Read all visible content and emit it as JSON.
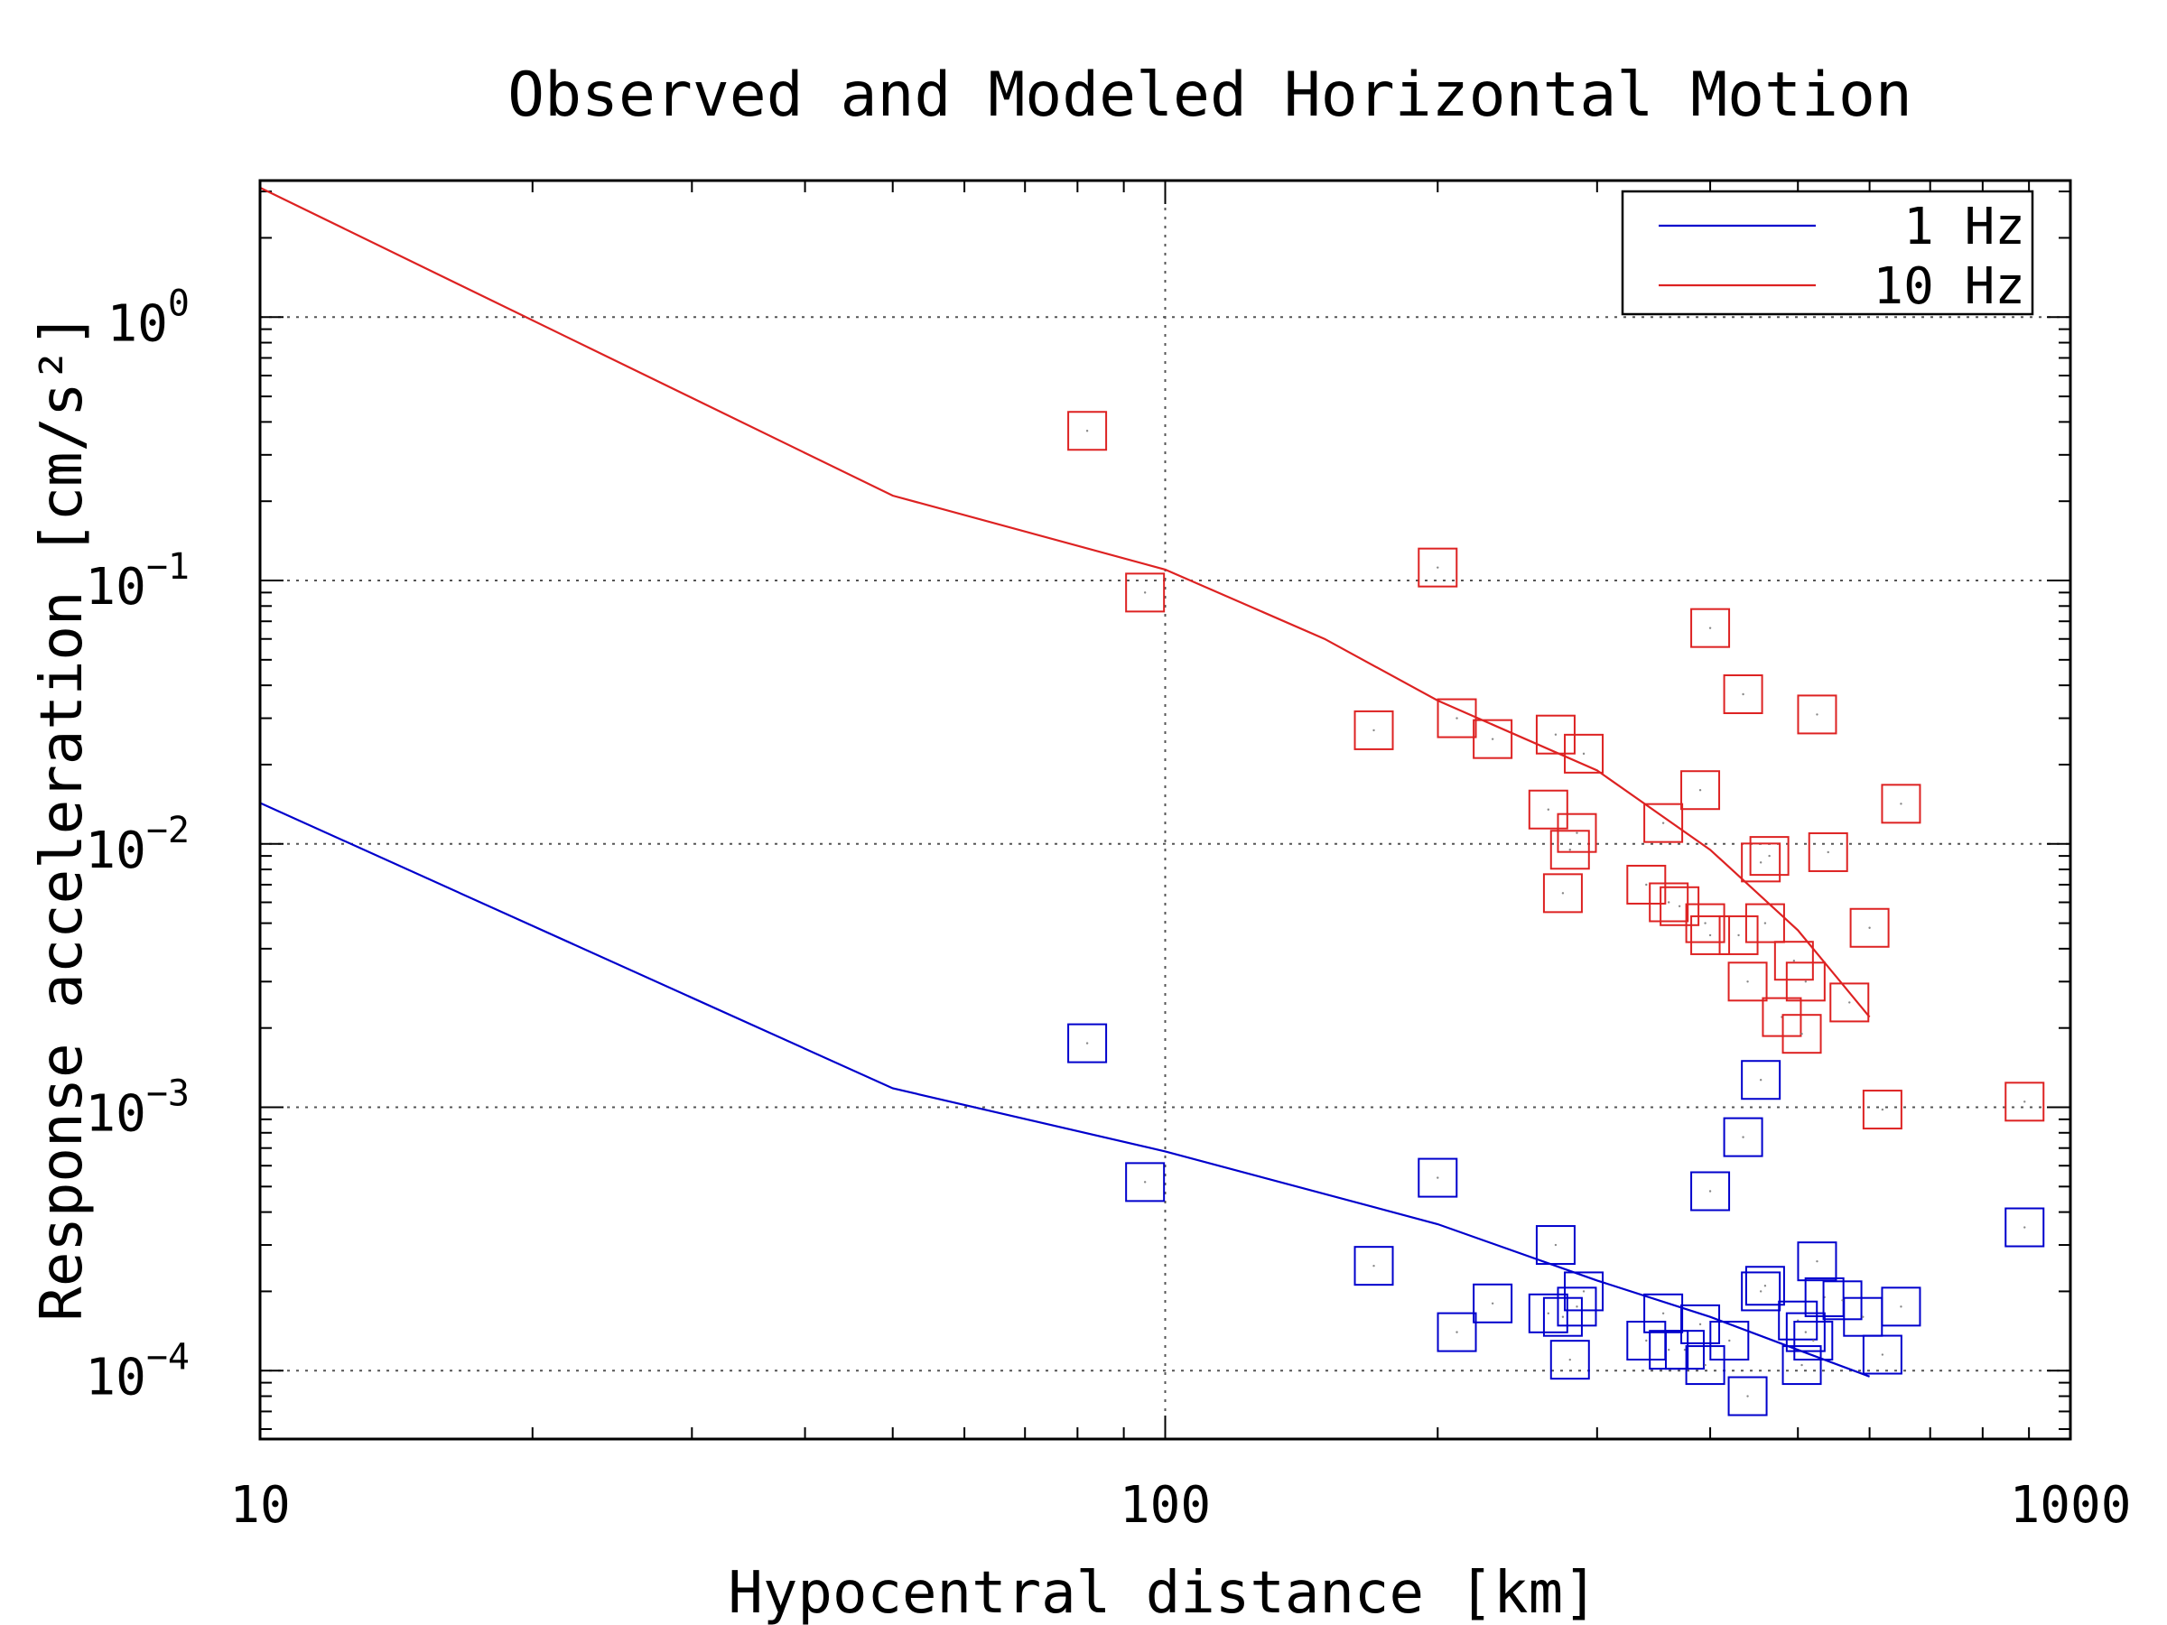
{
  "chart_data": {
    "type": "scatter",
    "title": "Observed and Modeled Horizontal Motion",
    "xlabel": "Hypocentral distance [km]",
    "ylabel": "Response acceleration [cm/s²]",
    "xscale": "log",
    "yscale": "log",
    "xlim": [
      10,
      1000
    ],
    "ylim": [
      5.5e-05,
      3.3
    ],
    "x_ticks": [
      {
        "value": 10,
        "label": "10"
      },
      {
        "value": 100,
        "label": "100"
      },
      {
        "value": 1000,
        "label": "1000"
      }
    ],
    "y_ticks": [
      {
        "value": 1,
        "base": "10",
        "exp": "0"
      },
      {
        "value": 0.1,
        "base": "10",
        "exp": "−1"
      },
      {
        "value": 0.01,
        "base": "10",
        "exp": "−2"
      },
      {
        "value": 0.001,
        "base": "10",
        "exp": "−3"
      },
      {
        "value": 0.0001,
        "base": "10",
        "exp": "−4"
      }
    ],
    "grid": true,
    "legend_position": "top-right",
    "series": [
      {
        "name": "1 Hz",
        "color": "#0000cc",
        "line": [
          [
            10,
            0.0143
          ],
          [
            50,
            0.00118
          ],
          [
            100,
            0.00068
          ],
          [
            200,
            0.00036
          ],
          [
            300,
            0.00022
          ],
          [
            400,
            0.00016
          ],
          [
            500,
            0.00012
          ],
          [
            600,
            9.5e-05
          ]
        ],
        "points": [
          [
            82,
            0.00175
          ],
          [
            95,
            0.00052
          ],
          [
            170,
            0.00025
          ],
          [
            200,
            0.00054
          ],
          [
            210,
            0.00014
          ],
          [
            230,
            0.00018
          ],
          [
            265,
            0.000165
          ],
          [
            270,
            0.0003
          ],
          [
            275,
            0.00016
          ],
          [
            280,
            0.00011
          ],
          [
            285,
            0.000175
          ],
          [
            290,
            0.0002
          ],
          [
            340,
            0.00013
          ],
          [
            355,
            0.000165
          ],
          [
            360,
            0.00012
          ],
          [
            375,
            0.00012
          ],
          [
            390,
            0.00015
          ],
          [
            395,
            0.000105
          ],
          [
            400,
            0.00048
          ],
          [
            420,
            0.00013
          ],
          [
            435,
            0.00077
          ],
          [
            440,
            8e-05
          ],
          [
            455,
            0.0002
          ],
          [
            455,
            0.00127
          ],
          [
            460,
            0.00021
          ],
          [
            500,
            0.000155
          ],
          [
            505,
            0.000105
          ],
          [
            510,
            0.00014
          ],
          [
            520,
            0.00013
          ],
          [
            525,
            0.00026
          ],
          [
            535,
            0.00019
          ],
          [
            560,
            0.000185
          ],
          [
            590,
            0.00016
          ],
          [
            620,
            0.000115
          ],
          [
            650,
            0.000175
          ],
          [
            890,
            0.00035
          ]
        ]
      },
      {
        "name": "10 Hz",
        "color": "#dd2222",
        "line": [
          [
            10,
            3.1
          ],
          [
            50,
            0.21
          ],
          [
            100,
            0.11
          ],
          [
            150,
            0.06
          ],
          [
            200,
            0.035
          ],
          [
            300,
            0.019
          ],
          [
            400,
            0.0095
          ],
          [
            500,
            0.0047
          ],
          [
            600,
            0.0022
          ]
        ],
        "points": [
          [
            82,
            0.37
          ],
          [
            95,
            0.09
          ],
          [
            170,
            0.027
          ],
          [
            200,
            0.112
          ],
          [
            210,
            0.03
          ],
          [
            230,
            0.025
          ],
          [
            265,
            0.0135
          ],
          [
            270,
            0.026
          ],
          [
            275,
            0.0065
          ],
          [
            280,
            0.0095
          ],
          [
            285,
            0.011
          ],
          [
            290,
            0.022
          ],
          [
            340,
            0.007
          ],
          [
            355,
            0.012
          ],
          [
            360,
            0.006
          ],
          [
            370,
            0.0058
          ],
          [
            390,
            0.016
          ],
          [
            395,
            0.005
          ],
          [
            400,
            0.0045
          ],
          [
            400,
            0.066
          ],
          [
            430,
            0.0045
          ],
          [
            435,
            0.037
          ],
          [
            440,
            0.003
          ],
          [
            455,
            0.0085
          ],
          [
            460,
            0.005
          ],
          [
            465,
            0.009
          ],
          [
            480,
            0.0022
          ],
          [
            495,
            0.0036
          ],
          [
            505,
            0.0019
          ],
          [
            510,
            0.003
          ],
          [
            525,
            0.031
          ],
          [
            540,
            0.0093
          ],
          [
            570,
            0.0025
          ],
          [
            600,
            0.0048
          ],
          [
            620,
            0.00098
          ],
          [
            650,
            0.0142
          ],
          [
            890,
            0.00105
          ]
        ]
      }
    ]
  }
}
